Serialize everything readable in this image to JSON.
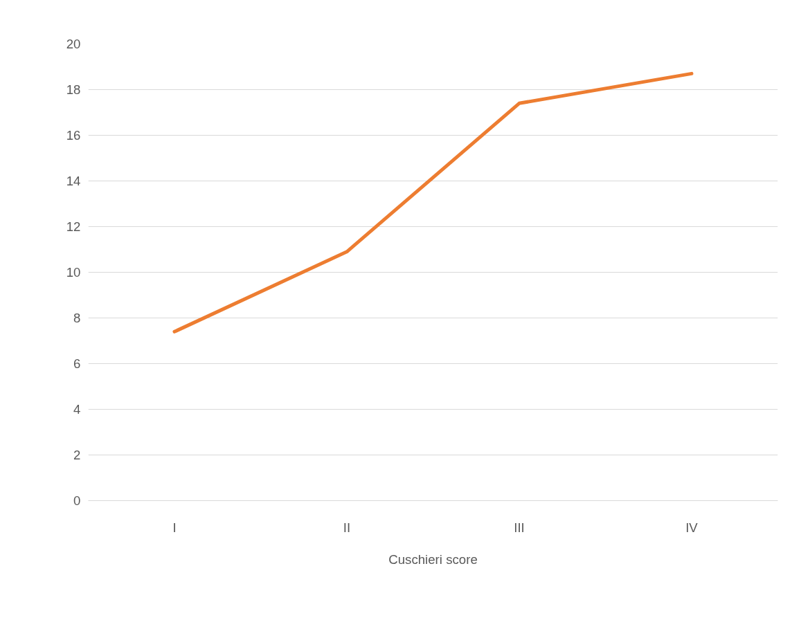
{
  "chart_data": {
    "type": "line",
    "xlabel": "Cuschieri score",
    "categories": [
      "I",
      "II",
      "III",
      "IV"
    ],
    "series": [
      {
        "color": "#ed7d31",
        "values": [
          7.4,
          10.9,
          17.4,
          18.7
        ]
      }
    ],
    "ylim": [
      0,
      20
    ],
    "yticks": [
      0,
      2,
      4,
      6,
      8,
      10,
      12,
      14,
      16,
      18,
      20
    ],
    "grid": "y",
    "marker": "none",
    "line_style": "solid"
  }
}
